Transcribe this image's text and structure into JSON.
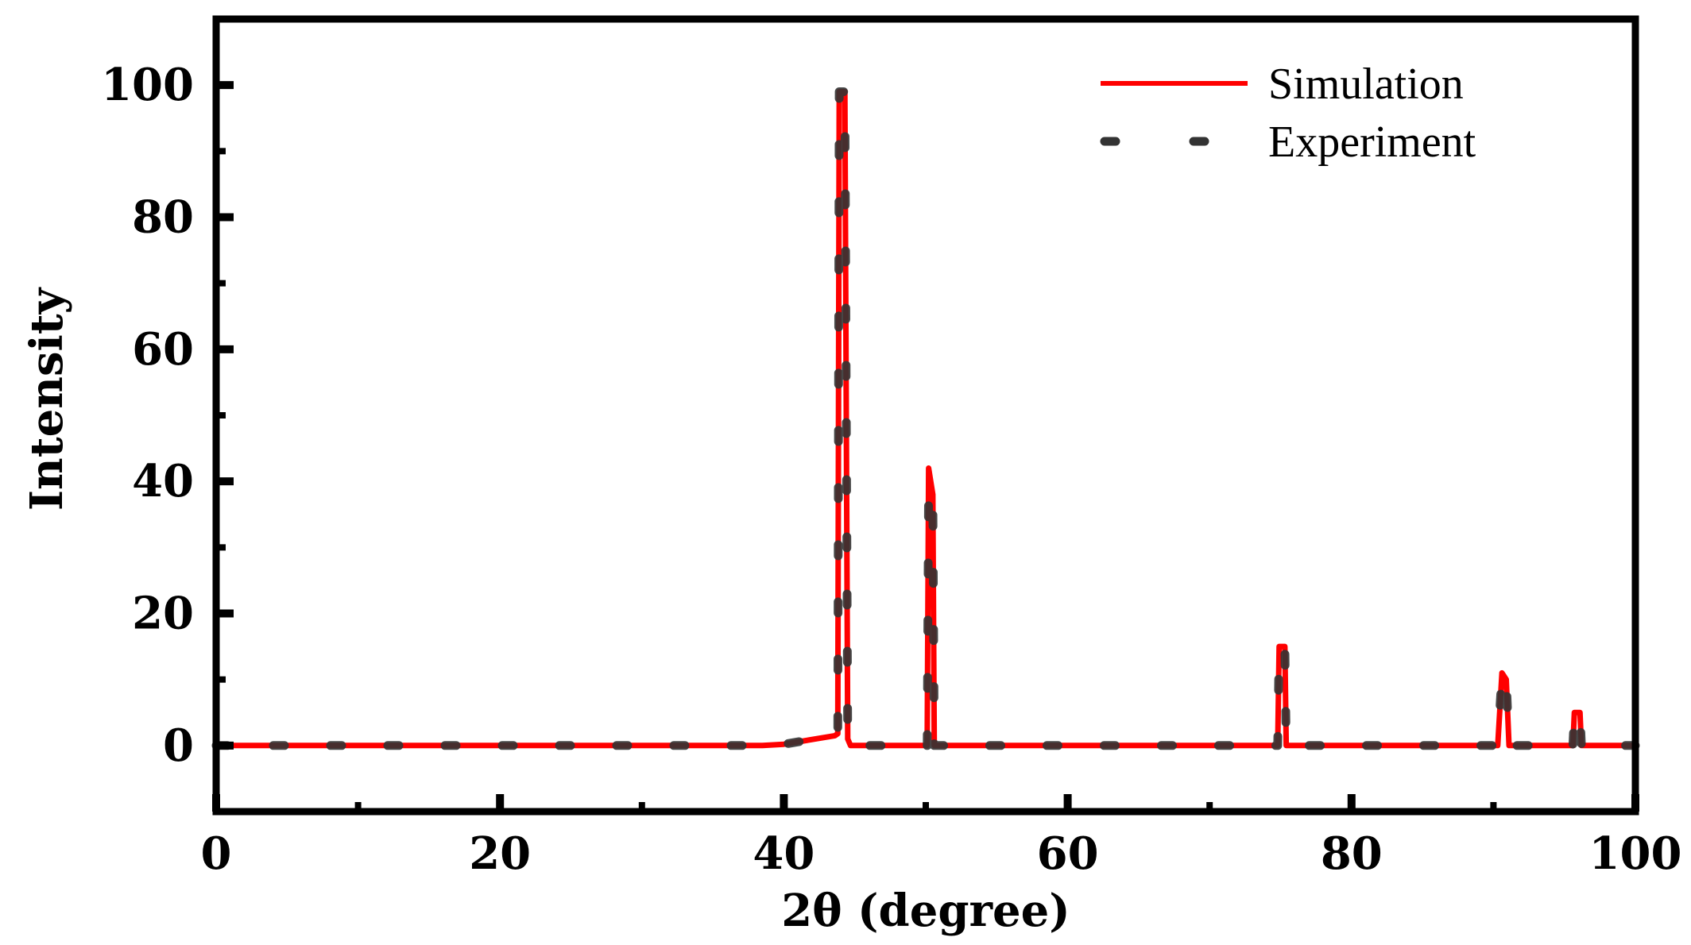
{
  "chart_data": {
    "type": "line",
    "xlabel": "2θ (degree)",
    "ylabel": "Intensity",
    "xlim": [
      0,
      100
    ],
    "ylim": [
      -10,
      110
    ],
    "x_ticks": [
      0,
      20,
      40,
      60,
      80,
      100
    ],
    "y_ticks": [
      0,
      20,
      40,
      60,
      80,
      100
    ],
    "grid": false,
    "legend_position": "top-right",
    "series": [
      {
        "name": "Simulation",
        "style": "solid",
        "color": "#ff0000",
        "points": [
          [
            0,
            0
          ],
          [
            38.5,
            0
          ],
          [
            40,
            0.2
          ],
          [
            43.6,
            1.5
          ],
          [
            43.8,
            1.8
          ],
          [
            43.9,
            99
          ],
          [
            44.3,
            99
          ],
          [
            44.5,
            1
          ],
          [
            44.7,
            0
          ],
          [
            50.1,
            0
          ],
          [
            50.2,
            42
          ],
          [
            50.5,
            38
          ],
          [
            50.6,
            0
          ],
          [
            74.8,
            0
          ],
          [
            74.9,
            15
          ],
          [
            75.3,
            15
          ],
          [
            75.4,
            0
          ],
          [
            90.3,
            0
          ],
          [
            90.6,
            11
          ],
          [
            90.9,
            10
          ],
          [
            91.1,
            0
          ],
          [
            95.6,
            0
          ],
          [
            95.7,
            5
          ],
          [
            96.1,
            5
          ],
          [
            96.2,
            0
          ],
          [
            100,
            0
          ]
        ]
      },
      {
        "name": "Experiment",
        "style": "dashed",
        "color": "#333333",
        "points": [
          [
            0,
            0
          ],
          [
            38.5,
            0
          ],
          [
            40,
            0.2
          ],
          [
            43.6,
            1.5
          ],
          [
            43.8,
            1.8
          ],
          [
            43.9,
            99
          ],
          [
            44.3,
            99
          ],
          [
            44.5,
            1
          ],
          [
            44.7,
            0
          ],
          [
            50.1,
            0
          ],
          [
            50.2,
            39
          ],
          [
            50.5,
            38
          ],
          [
            50.6,
            0
          ],
          [
            74.8,
            0
          ],
          [
            74.9,
            15
          ],
          [
            75.3,
            15
          ],
          [
            75.4,
            0
          ],
          [
            90.3,
            0
          ],
          [
            90.6,
            11
          ],
          [
            90.9,
            10
          ],
          [
            91.1,
            0
          ],
          [
            95.6,
            0
          ],
          [
            95.7,
            5
          ],
          [
            96.1,
            5
          ],
          [
            96.2,
            0
          ],
          [
            100,
            0
          ]
        ]
      }
    ]
  }
}
